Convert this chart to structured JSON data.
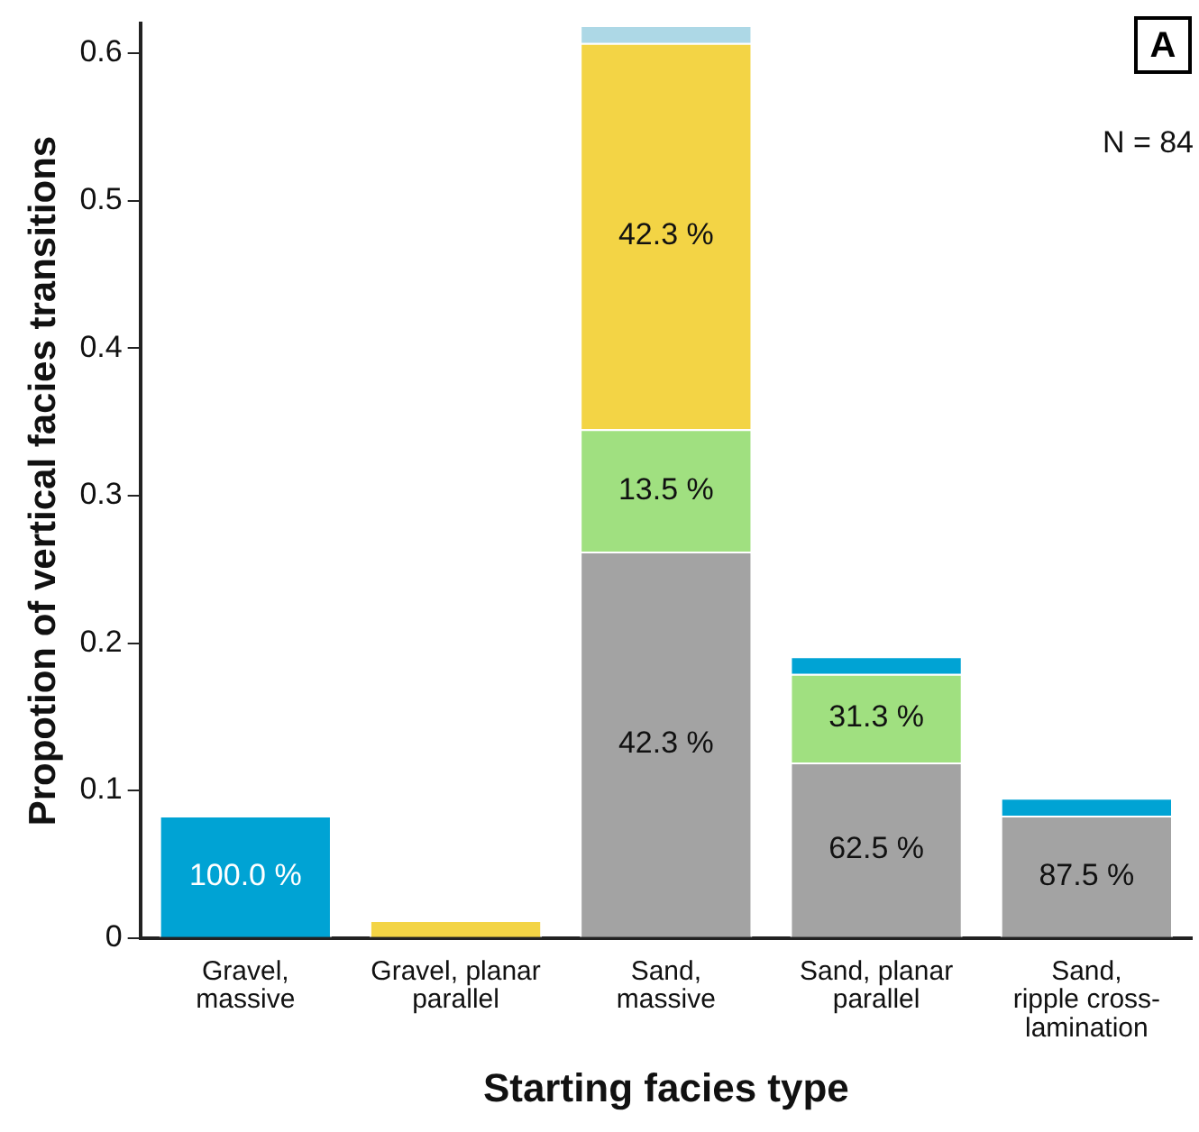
{
  "chart_data": {
    "type": "bar",
    "stacked": true,
    "xlabel": "Starting facies type",
    "ylabel": "Propotion of vertical facies transitions",
    "categories": [
      "Gravel,\nmassive",
      "Gravel, planar\nparallel",
      "Sand,\nmassive",
      "Sand, planar\nparallel",
      "Sand,\nripple cross-\nlamination"
    ],
    "series": [
      {
        "color": "#a3a3a3",
        "values": [
          null,
          null,
          0.262,
          0.119,
          0.083
        ]
      },
      {
        "color": "#a0e080",
        "values": [
          null,
          null,
          0.083,
          0.06,
          null
        ]
      },
      {
        "color": "#f3d445",
        "values": [
          null,
          0.012,
          0.262,
          null,
          null
        ]
      },
      {
        "color": "#add8e6",
        "values": [
          null,
          null,
          0.012,
          null,
          null
        ]
      },
      {
        "color": "#00a3d4",
        "values": [
          0.083,
          null,
          null,
          0.012,
          0.012
        ]
      }
    ],
    "ylim": [
      0,
      0.62
    ],
    "yticks": [
      0,
      0.1,
      0.2,
      0.3,
      0.4,
      0.5,
      0.6
    ],
    "grid": false,
    "legend": false,
    "annotations": [
      "A",
      "N = 84",
      "100.0 %",
      "42.3 %",
      "13.5 %",
      "42.3 %",
      "62.5 %",
      "31.3 %",
      "87.5 %"
    ]
  }
}
